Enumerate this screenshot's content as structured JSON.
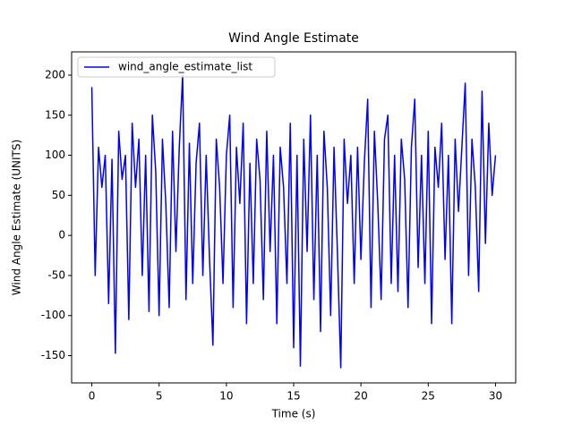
{
  "chart_data": {
    "type": "line",
    "title": "Wind Angle Estimate",
    "xlabel": "Time (s)",
    "ylabel": "Wind Angle Estimate (UNITS)",
    "x": [
      0,
      0.25,
      0.5,
      0.75,
      1,
      1.25,
      1.5,
      1.75,
      2,
      2.25,
      2.5,
      2.75,
      3,
      3.25,
      3.5,
      3.75,
      4,
      4.25,
      4.5,
      4.75,
      5,
      5.25,
      5.5,
      5.75,
      6,
      6.25,
      6.5,
      6.75,
      7,
      7.25,
      7.5,
      7.75,
      8,
      8.25,
      8.5,
      8.75,
      9,
      9.25,
      9.5,
      9.75,
      10,
      10.25,
      10.5,
      10.75,
      11,
      11.25,
      11.5,
      11.75,
      12,
      12.25,
      12.5,
      12.75,
      13,
      13.25,
      13.5,
      13.75,
      14,
      14.25,
      14.5,
      14.75,
      15,
      15.25,
      15.5,
      15.75,
      16,
      16.25,
      16.5,
      16.75,
      17,
      17.25,
      17.5,
      17.75,
      18,
      18.25,
      18.5,
      18.75,
      19,
      19.25,
      19.5,
      19.75,
      20,
      20.25,
      20.5,
      20.75,
      21,
      21.25,
      21.5,
      21.75,
      22,
      22.25,
      22.5,
      22.75,
      23,
      23.25,
      23.5,
      23.75,
      24,
      24.25,
      24.5,
      24.75,
      25,
      25.25,
      25.5,
      25.75,
      26,
      26.25,
      26.5,
      26.75,
      27,
      27.25,
      27.5,
      27.75,
      28,
      28.25,
      28.5,
      28.75,
      29,
      29.25,
      29.5,
      29.75,
      30
    ],
    "series": [
      {
        "name": "wind_angle_estimate_list",
        "color": "#0000ff",
        "values": [
          185,
          -50,
          110,
          60,
          100,
          -85,
          95,
          -147,
          130,
          70,
          100,
          -105,
          140,
          60,
          120,
          -50,
          100,
          -95,
          150,
          80,
          -100,
          120,
          40,
          -90,
          130,
          -20,
          110,
          200,
          -80,
          115,
          -60,
          90,
          140,
          -50,
          100,
          -30,
          -137,
          120,
          60,
          -60,
          100,
          150,
          -90,
          110,
          40,
          140,
          -110,
          90,
          -60,
          120,
          70,
          -80,
          130,
          -20,
          100,
          -110,
          110,
          60,
          -60,
          140,
          -140,
          100,
          -163,
          120,
          -20,
          150,
          -80,
          100,
          -120,
          130,
          60,
          -100,
          110,
          -20,
          -165,
          120,
          40,
          100,
          -60,
          110,
          -30,
          90,
          170,
          -90,
          130,
          40,
          -80,
          120,
          150,
          -60,
          100,
          -70,
          120,
          70,
          -90,
          110,
          170,
          -40,
          100,
          -60,
          130,
          -110,
          110,
          60,
          140,
          -30,
          100,
          -110,
          120,
          30,
          110,
          190,
          -50,
          120,
          60,
          -70,
          180,
          -10,
          140,
          50,
          100
        ]
      }
    ],
    "xlim": [
      -1.5,
      31.5
    ],
    "ylim": [
      -184,
      229
    ],
    "xticks": [
      0,
      5,
      10,
      15,
      20,
      25,
      30
    ],
    "yticks": [
      -150,
      -100,
      -50,
      0,
      50,
      100,
      150,
      200
    ],
    "legend": "upper left"
  }
}
